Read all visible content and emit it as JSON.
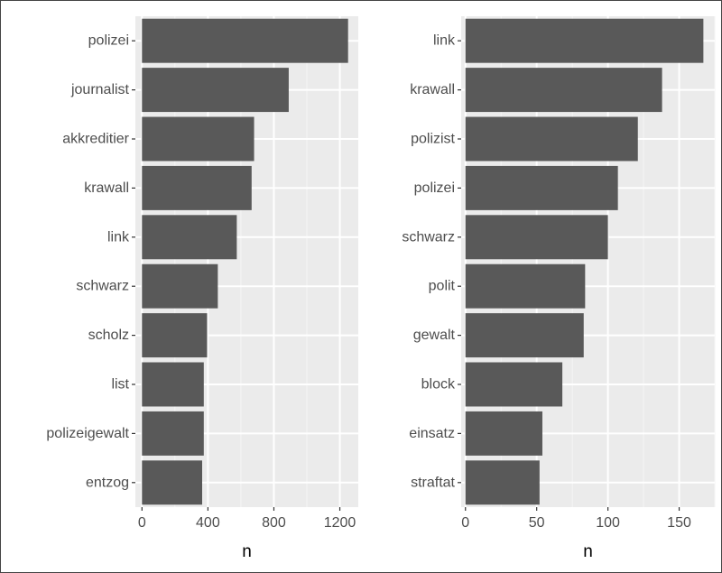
{
  "chart_data": [
    {
      "type": "bar",
      "orientation": "horizontal",
      "categories": [
        "polizei",
        "journalist",
        "akkreditier",
        "krawall",
        "link",
        "schwarz",
        "scholz",
        "list",
        "polizeigewalt",
        "entzog"
      ],
      "values": [
        1250,
        890,
        680,
        665,
        575,
        460,
        395,
        375,
        375,
        365
      ],
      "xlabel": "n",
      "ylabel": "",
      "xlim": [
        -40,
        1312
      ],
      "xticks": [
        0,
        400,
        800,
        1200
      ],
      "xticks_label": [
        "0",
        "400",
        "800",
        "1200"
      ],
      "bar_color": "#595959",
      "panel_bg": "#ebebeb",
      "grid": true
    },
    {
      "type": "bar",
      "orientation": "horizontal",
      "categories": [
        "link",
        "krawall",
        "polizist",
        "polizei",
        "schwarz",
        "polit",
        "gewalt",
        "block",
        "einsatz",
        "straftat"
      ],
      "values": [
        167,
        138,
        121,
        107,
        100,
        84,
        83,
        68,
        54,
        52
      ],
      "xlabel": "n",
      "ylabel": "",
      "xlim": [
        -3,
        175
      ],
      "xticks": [
        0,
        50,
        100,
        150
      ],
      "xticks_label": [
        "0",
        "50",
        "100",
        "150"
      ],
      "bar_color": "#595959",
      "panel_bg": "#ebebeb",
      "grid": true
    }
  ]
}
